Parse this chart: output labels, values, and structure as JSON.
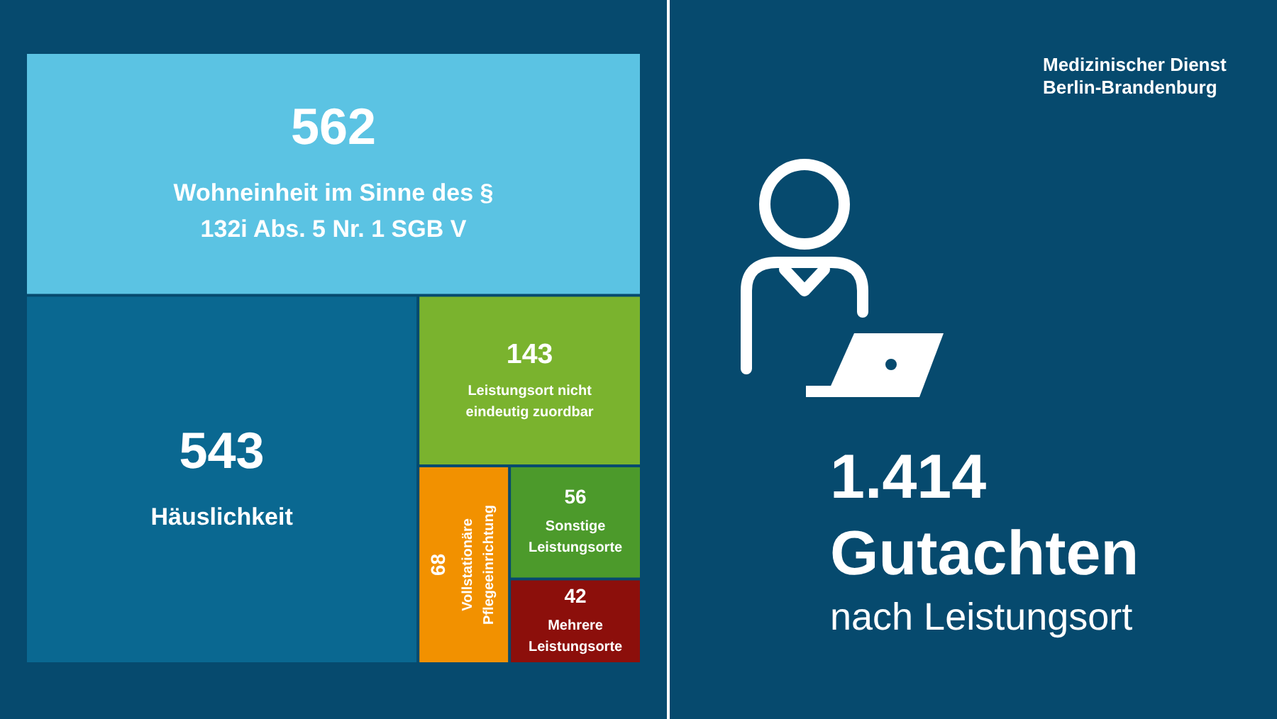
{
  "chart_data": {
    "type": "other",
    "title": "1.414 Gutachten",
    "subtitle": "nach Leistungsort",
    "categories": [
      "Wohneinheit im Sinne des § 132i Abs. 5 Nr. 1 SGB V",
      "Häuslichkeit",
      "Leistungsort nicht eindeutig zuordbar",
      "Vollstationäre Pflegeeinrichtung",
      "Sonstige Leistungsorte",
      "Mehrere Leistungsorte"
    ],
    "values": [
      562,
      543,
      143,
      68,
      56,
      42
    ],
    "colors": [
      "#5bc3e3",
      "#0a6891",
      "#7ab32e",
      "#f29100",
      "#4c9a2b",
      "#8c0f0b"
    ],
    "annotations": [
      "Medizinischer Dienst Berlin-Brandenburg"
    ],
    "data_labels": true
  }
}
